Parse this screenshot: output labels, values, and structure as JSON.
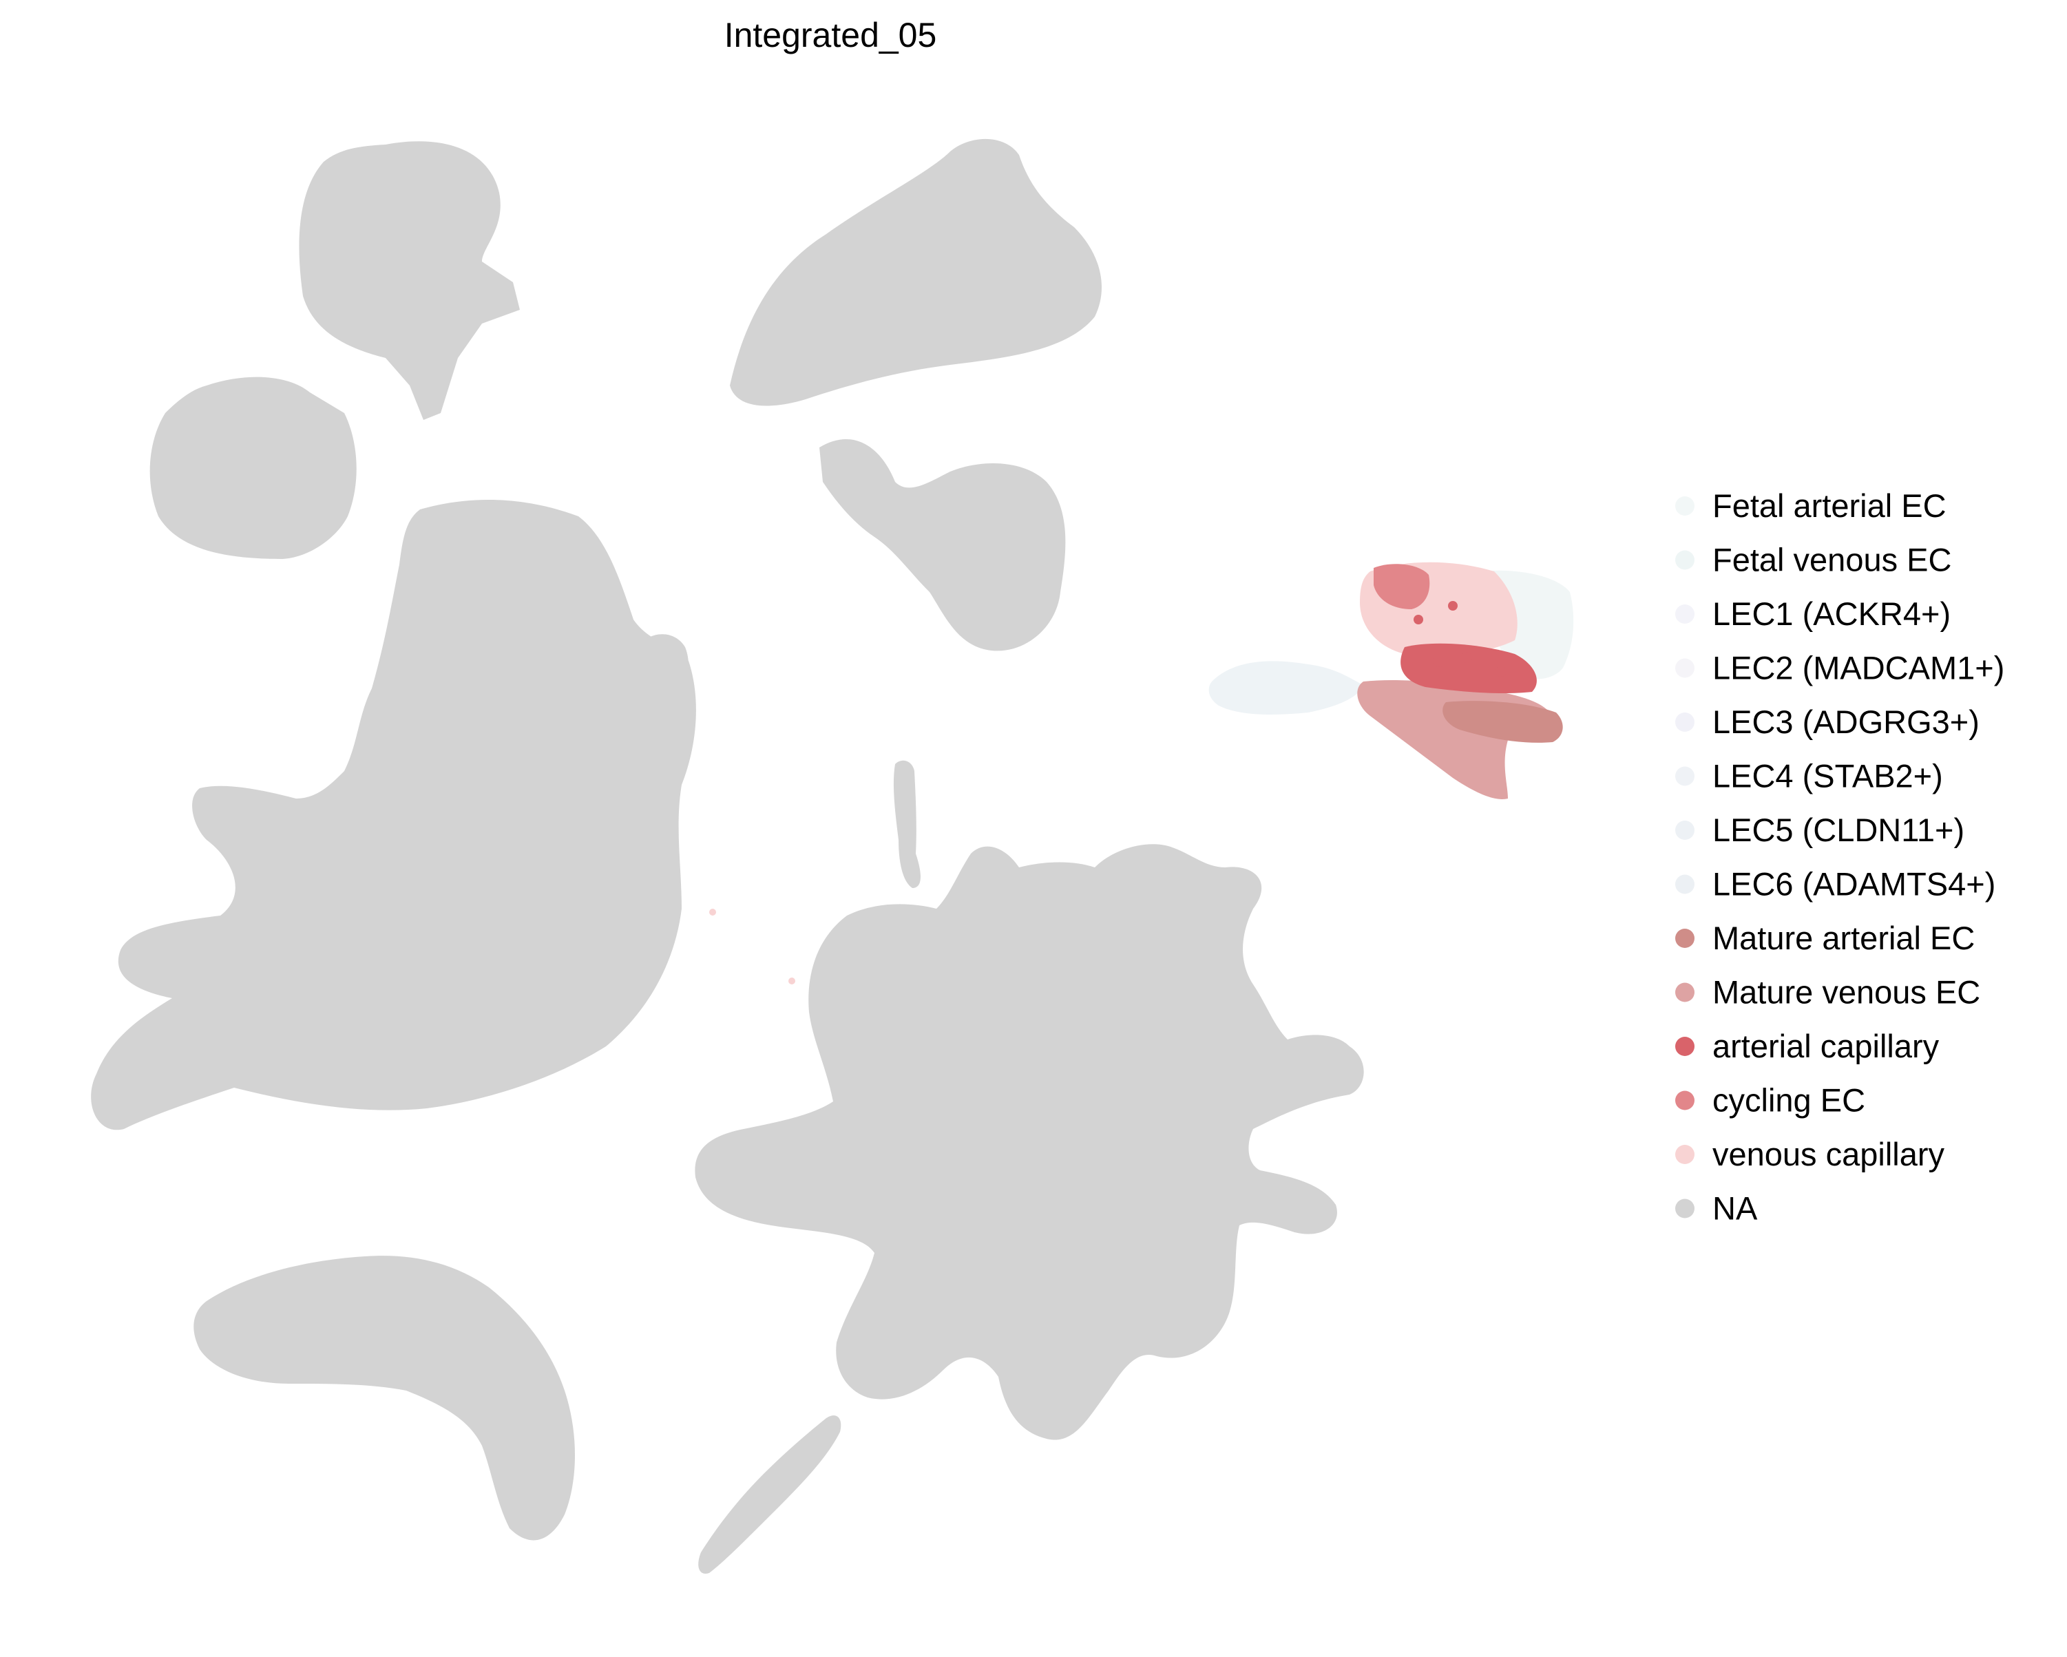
{
  "chart_data": {
    "type": "scatter",
    "title": "Integrated_05",
    "xlabel": "",
    "ylabel": "",
    "grid": false,
    "legend_placement": "right",
    "categories": [
      {
        "name": "Fetal arterial EC",
        "color": "#f2f7f7"
      },
      {
        "name": "Fetal venous EC",
        "color": "#eef5f5"
      },
      {
        "name": "LEC1 (ACKR4+)",
        "color": "#f3f3f9"
      },
      {
        "name": "LEC2 (MADCAM1+)",
        "color": "#f5f4f8"
      },
      {
        "name": "LEC3 (ADGRG3+)",
        "color": "#f1f1f8"
      },
      {
        "name": "LEC4 (STAB2+)",
        "color": "#eff2f6"
      },
      {
        "name": "LEC5 (CLDN11+)",
        "color": "#edf1f5"
      },
      {
        "name": "LEC6 (ADAMTS4+)",
        "color": "#ecf0f4"
      },
      {
        "name": "Mature arterial EC",
        "color": "#cf8d88"
      },
      {
        "name": "Mature venous EC",
        "color": "#dea3a3"
      },
      {
        "name": "arterial capillary",
        "color": "#d9636a"
      },
      {
        "name": "cycling EC",
        "color": "#e2868a"
      },
      {
        "name": "venous capillary",
        "color": "#f8d3d3"
      },
      {
        "name": "NA",
        "color": "#d3d3d3"
      }
    ]
  }
}
